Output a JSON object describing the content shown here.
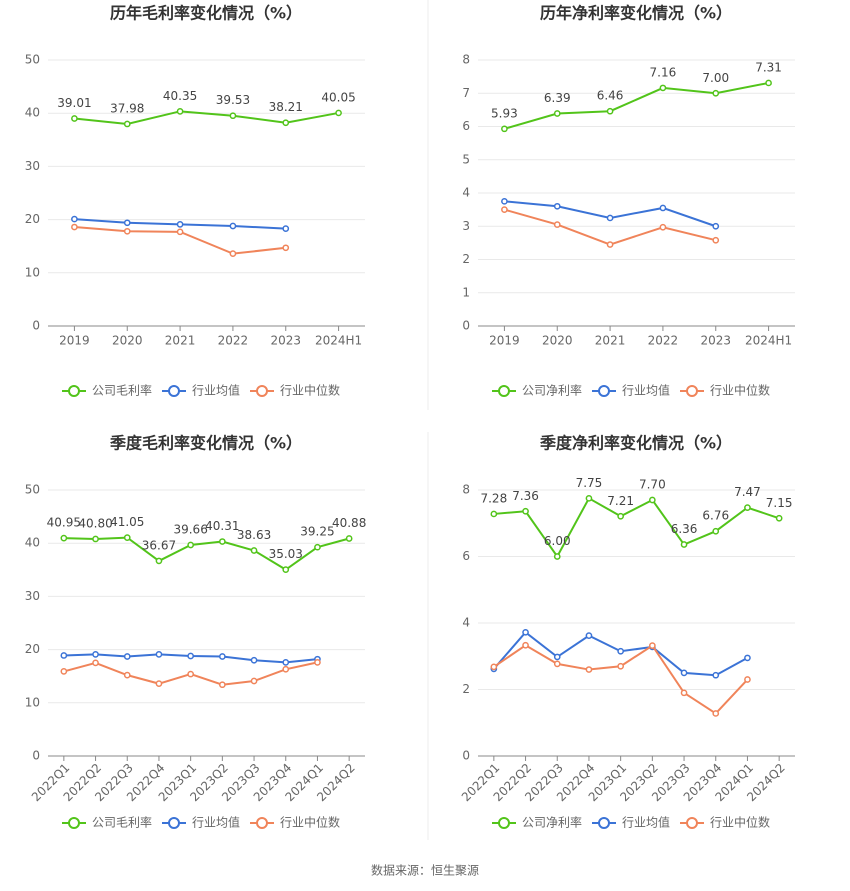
{
  "chart_data": [
    {
      "type": "line",
      "title": "历年毛利率变化情况（%）",
      "categories": [
        "2019",
        "2020",
        "2021",
        "2022",
        "2023",
        "2024H1"
      ],
      "ylim": [
        0,
        50
      ],
      "yticks": [
        0,
        10,
        20,
        30,
        40,
        50
      ],
      "grid": true,
      "series": [
        {
          "name": "公司毛利率",
          "color": "#52c41a",
          "values": [
            39.01,
            37.98,
            40.35,
            39.53,
            38.21,
            40.05
          ],
          "value_labels": [
            "39.01",
            "37.98",
            "40.35",
            "39.53",
            "38.21",
            "40.05"
          ]
        },
        {
          "name": "行业均值",
          "color": "#3b73d6",
          "values": [
            20.1,
            19.4,
            19.1,
            18.8,
            18.3,
            null
          ]
        },
        {
          "name": "行业中位数",
          "color": "#f0845a",
          "values": [
            18.6,
            17.8,
            17.7,
            13.6,
            14.7,
            null
          ]
        }
      ]
    },
    {
      "type": "line",
      "title": "历年净利率变化情况（%）",
      "categories": [
        "2019",
        "2020",
        "2021",
        "2022",
        "2023",
        "2024H1"
      ],
      "ylim": [
        0,
        8
      ],
      "yticks": [
        0,
        1,
        2,
        3,
        4,
        5,
        6,
        7,
        8
      ],
      "grid": true,
      "series": [
        {
          "name": "公司净利率",
          "color": "#52c41a",
          "values": [
            5.93,
            6.39,
            6.46,
            7.16,
            7.0,
            7.31
          ],
          "value_labels": [
            "5.93",
            "6.39",
            "6.46",
            "7.16",
            "7.00",
            "7.31"
          ]
        },
        {
          "name": "行业均值",
          "color": "#3b73d6",
          "values": [
            3.75,
            3.6,
            3.25,
            3.55,
            3.0,
            null
          ]
        },
        {
          "name": "行业中位数",
          "color": "#f0845a",
          "values": [
            3.5,
            3.05,
            2.45,
            2.97,
            2.58,
            null
          ]
        }
      ]
    },
    {
      "type": "line",
      "title": "季度毛利率变化情况（%）",
      "categories": [
        "2022Q1",
        "2022Q2",
        "2022Q3",
        "2022Q4",
        "2023Q1",
        "2023Q2",
        "2023Q3",
        "2023Q4",
        "2024Q1",
        "2024Q2"
      ],
      "ylim": [
        0,
        50
      ],
      "yticks": [
        0,
        10,
        20,
        30,
        40,
        50
      ],
      "grid": true,
      "series": [
        {
          "name": "公司毛利率",
          "color": "#52c41a",
          "values": [
            40.95,
            40.8,
            41.05,
            36.67,
            39.66,
            40.31,
            38.63,
            35.03,
            39.25,
            40.88
          ],
          "value_labels": [
            "40.95",
            "40.80",
            "41.05",
            "36.67",
            "39.66",
            "40.31",
            "38.63",
            "35.03",
            "39.25",
            "40.88"
          ]
        },
        {
          "name": "行业均值",
          "color": "#3b73d6",
          "values": [
            18.9,
            19.1,
            18.7,
            19.1,
            18.8,
            18.7,
            18.0,
            17.6,
            18.2,
            null
          ]
        },
        {
          "name": "行业中位数",
          "color": "#f0845a",
          "values": [
            15.9,
            17.5,
            15.2,
            13.6,
            15.4,
            13.4,
            14.1,
            16.3,
            17.6,
            null
          ]
        }
      ]
    },
    {
      "type": "line",
      "title": "季度净利率变化情况（%）",
      "categories": [
        "2022Q1",
        "2022Q2",
        "2022Q3",
        "2022Q4",
        "2023Q1",
        "2023Q2",
        "2023Q3",
        "2023Q4",
        "2024Q1",
        "2024Q2"
      ],
      "ylim": [
        0,
        8
      ],
      "yticks": [
        0,
        2,
        4,
        6,
        8
      ],
      "grid": true,
      "series": [
        {
          "name": "公司净利率",
          "color": "#52c41a",
          "values": [
            7.28,
            7.36,
            6.0,
            7.75,
            7.21,
            7.7,
            6.36,
            6.76,
            7.47,
            7.15
          ],
          "value_labels": [
            "7.28",
            "7.36",
            "6.00",
            "7.75",
            "7.21",
            "7.70",
            "6.36",
            "6.76",
            "7.47",
            "7.15"
          ]
        },
        {
          "name": "行业均值",
          "color": "#3b73d6",
          "values": [
            2.62,
            3.72,
            2.98,
            3.62,
            3.15,
            3.28,
            2.5,
            2.43,
            2.95,
            null
          ]
        },
        {
          "name": "行业中位数",
          "color": "#f0845a",
          "values": [
            2.68,
            3.33,
            2.77,
            2.6,
            2.7,
            3.32,
            1.9,
            1.28,
            2.3,
            null
          ]
        }
      ]
    }
  ],
  "source": "数据来源：恒生聚源"
}
